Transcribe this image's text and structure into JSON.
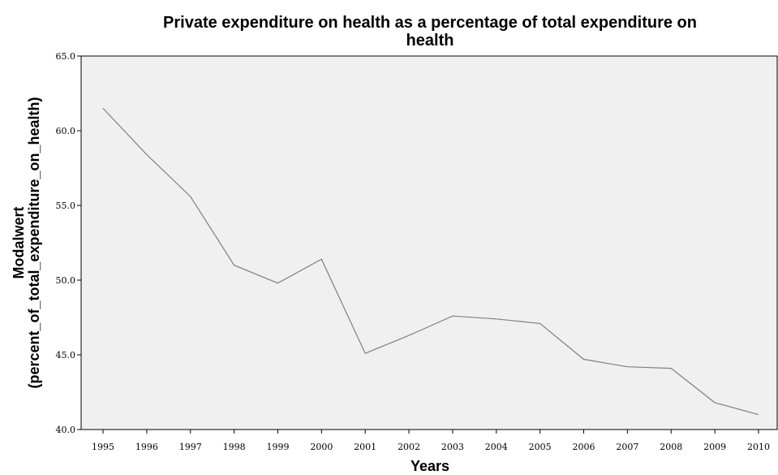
{
  "chart_data": {
    "type": "line",
    "title_line1": "Private expenditure on health as a percentage of total expenditure on",
    "title_line2": "health",
    "xlabel": "Years",
    "ylabel_line1": "Modalwert",
    "ylabel_line2": "(percent_of_total_expenditure_on_health)",
    "x": [
      "1995",
      "1996",
      "1997",
      "1998",
      "1999",
      "2000",
      "2001",
      "2002",
      "2003",
      "2004",
      "2005",
      "2006",
      "2007",
      "2008",
      "2009",
      "2010"
    ],
    "series": [
      {
        "values": [
          61.5,
          58.4,
          55.6,
          51.0,
          49.8,
          51.4,
          45.1,
          46.3,
          47.6,
          47.4,
          47.1,
          44.7,
          44.2,
          44.1,
          41.8,
          41.0
        ]
      }
    ],
    "ylim": [
      40.0,
      65.0
    ],
    "yticks": [
      "40.0",
      "45.0",
      "50.0",
      "55.0",
      "60.0",
      "65.0"
    ],
    "grid": false,
    "colors": {
      "plot_background": "#f0f0f0",
      "line": "#808080",
      "axis": "#000000"
    }
  }
}
